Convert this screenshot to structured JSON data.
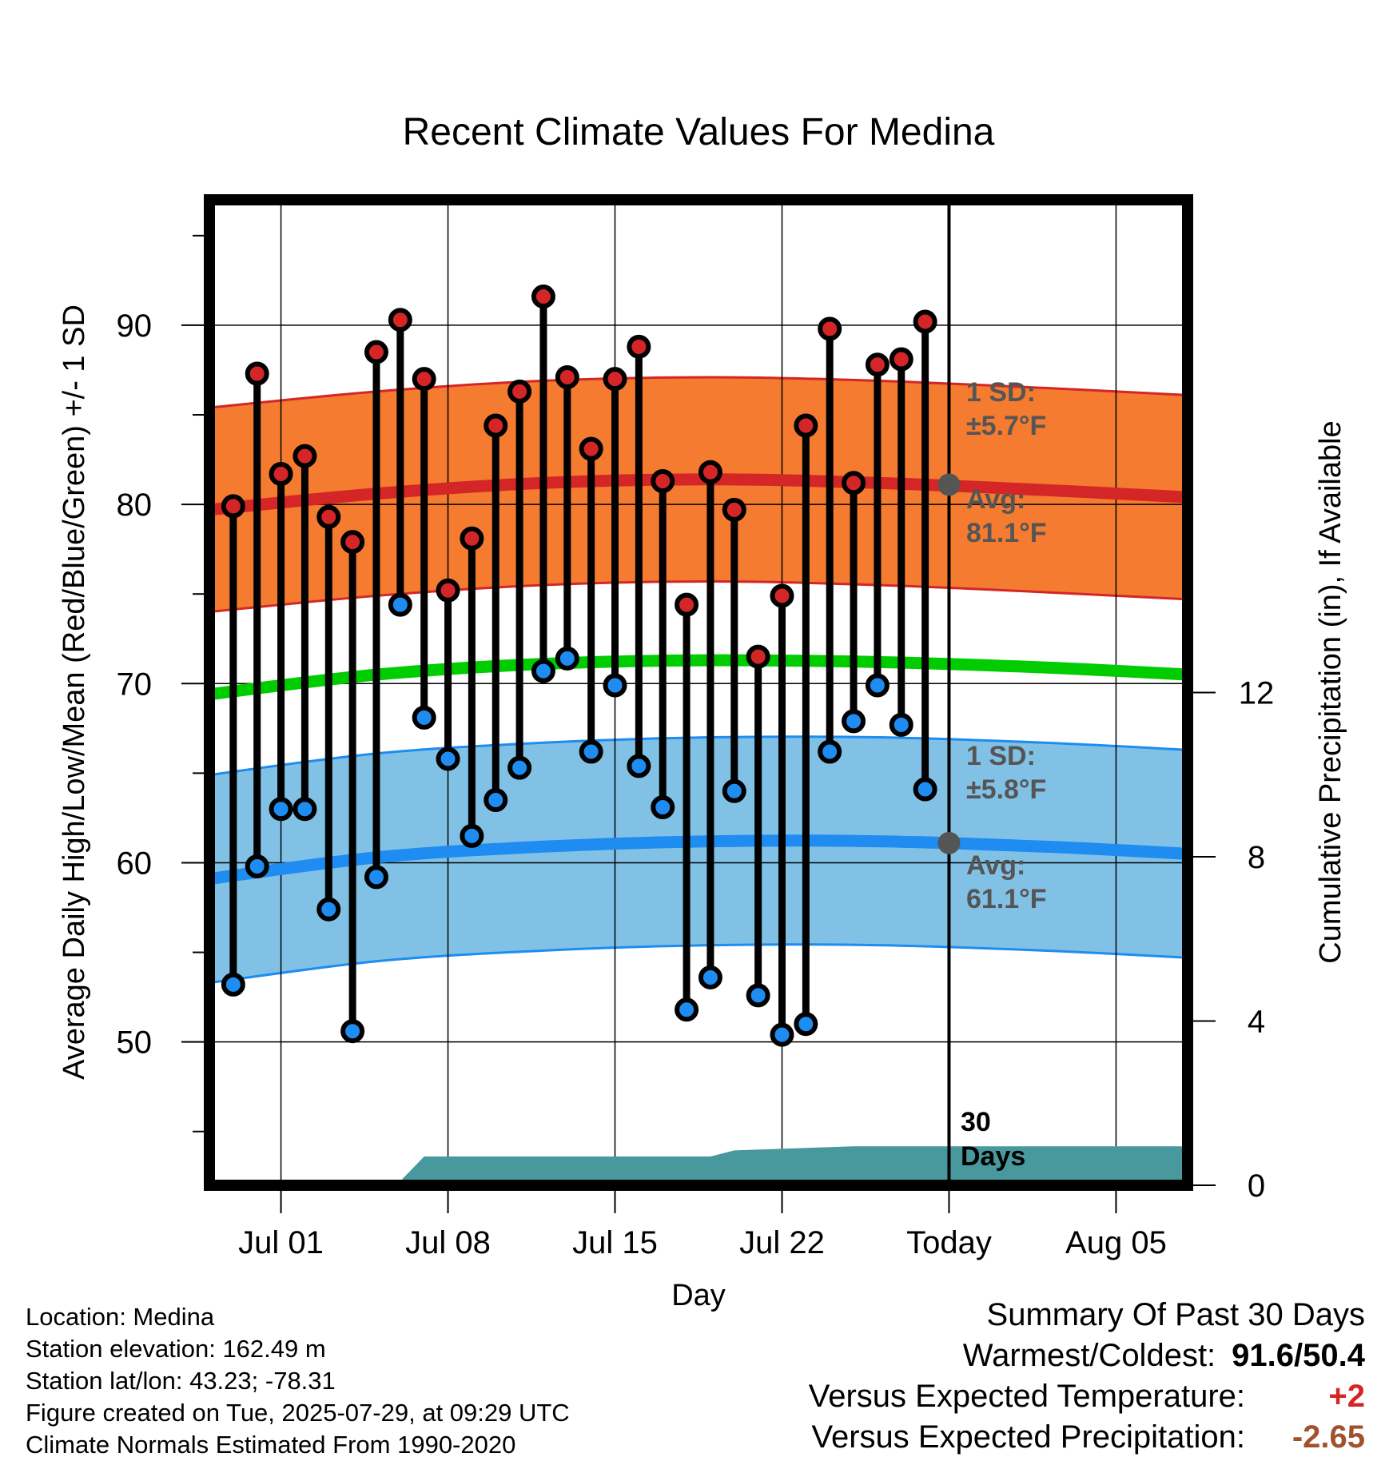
{
  "chart_data": {
    "type": "line",
    "title": "Recent Climate Values For Medina",
    "xlabel": "Day",
    "ylabel": "Average Daily High/Low/Mean (Red/Blue/Green) +/- 1 SD",
    "y2label": "Cumulative Precipitation (in), If Available",
    "ylim": [
      42,
      97
    ],
    "y2lim": [
      0,
      24
    ],
    "xlim": [
      "2025-06-28",
      "2025-08-08"
    ],
    "x_ticks": [
      {
        "date": "2025-07-01",
        "label": "Jul 01"
      },
      {
        "date": "2025-07-08",
        "label": "Jul 08"
      },
      {
        "date": "2025-07-15",
        "label": "Jul 15"
      },
      {
        "date": "2025-07-22",
        "label": "Jul 22"
      },
      {
        "date": "2025-07-29",
        "label": "Today"
      },
      {
        "date": "2025-08-05",
        "label": "Aug 05"
      }
    ],
    "y_ticks": [
      50,
      60,
      70,
      80,
      90
    ],
    "y2_ticks": [
      0,
      4,
      8,
      12
    ],
    "grid": true,
    "today": "2025-07-29",
    "days": [
      "2025-06-29",
      "2025-06-30",
      "2025-07-01",
      "2025-07-02",
      "2025-07-03",
      "2025-07-04",
      "2025-07-05",
      "2025-07-06",
      "2025-07-07",
      "2025-07-08",
      "2025-07-09",
      "2025-07-10",
      "2025-07-11",
      "2025-07-12",
      "2025-07-13",
      "2025-07-14",
      "2025-07-15",
      "2025-07-16",
      "2025-07-17",
      "2025-07-18",
      "2025-07-19",
      "2025-07-20",
      "2025-07-21",
      "2025-07-22",
      "2025-07-23",
      "2025-07-24",
      "2025-07-25",
      "2025-07-26",
      "2025-07-27",
      "2025-07-28"
    ],
    "highs": [
      79.9,
      87.3,
      81.7,
      82.7,
      79.3,
      77.9,
      88.5,
      90.3,
      87.0,
      75.2,
      78.1,
      84.4,
      86.3,
      91.6,
      87.1,
      83.1,
      87.0,
      88.8,
      81.3,
      74.4,
      81.8,
      79.7,
      71.5,
      74.9,
      84.4,
      89.8,
      81.2,
      87.8,
      88.1,
      90.2
    ],
    "lows": [
      53.2,
      59.8,
      63.0,
      63.0,
      57.4,
      50.6,
      59.2,
      74.4,
      68.1,
      65.8,
      61.5,
      63.5,
      65.3,
      70.7,
      71.4,
      66.2,
      69.9,
      65.4,
      63.1,
      51.8,
      53.6,
      64.0,
      52.6,
      50.4,
      51.0,
      66.2,
      67.9,
      69.9,
      67.7,
      64.1
    ],
    "normals": {
      "dates": [
        "2025-06-28",
        "2025-07-05",
        "2025-07-12",
        "2025-07-19",
        "2025-07-26",
        "2025-08-02",
        "2025-08-08"
      ],
      "high_mean": [
        79.7,
        80.6,
        81.2,
        81.4,
        81.2,
        80.8,
        80.4
      ],
      "low_mean": [
        59.1,
        60.3,
        60.9,
        61.2,
        61.2,
        60.9,
        60.5
      ],
      "mean": [
        69.4,
        70.5,
        71.1,
        71.3,
        71.2,
        70.9,
        70.5
      ],
      "high_sd": 5.7,
      "low_sd": 5.8
    },
    "precipitation": {
      "dates": [
        "2025-06-28",
        "2025-07-03",
        "2025-07-06",
        "2025-07-07",
        "2025-07-19",
        "2025-07-20",
        "2025-07-25",
        "2025-08-08"
      ],
      "cumulative": [
        0.0,
        0.05,
        0.1,
        0.7,
        0.7,
        0.85,
        0.95,
        0.95
      ]
    },
    "annotations": {
      "high_sd_label": "1 SD:",
      "high_sd_value": "±5.7°F",
      "high_avg_label": "Avg:",
      "high_avg_value": "81.1°F",
      "low_sd_label": "1 SD:",
      "low_sd_value": "±5.8°F",
      "low_avg_label": "Avg:",
      "low_avg_value": "61.1°F",
      "today_line1": "30",
      "today_line2": "Days"
    },
    "colors": {
      "high_band": "#F47B30",
      "high_line": "#D42626",
      "low_band": "#82C1E6",
      "low_line": "#1E8CF0",
      "mean_line": "#00CC00",
      "precip": "#48999E",
      "high_marker": "#D42626",
      "low_marker": "#1E8CF0",
      "today_marker": "#555555"
    }
  },
  "footer": {
    "location": "Location: Medina",
    "elevation": "Station elevation: 162.49 m",
    "latlon": "Station lat/lon: 43.23; -78.31",
    "created": "Figure created on Tue, 2025-07-29, at 09:29 UTC",
    "normals": "Climate Normals Estimated From 1990-2020"
  },
  "summary": {
    "heading": "Summary Of Past 30 Days",
    "warmest_coldest_label": "Warmest/Coldest:",
    "warmest_coldest_value": "91.6/50.4",
    "temp_label": "Versus Expected Temperature:",
    "temp_value": "+2",
    "temp_color": "#D42626",
    "precip_label": "Versus Expected Precipitation:",
    "precip_value": "-2.65",
    "precip_color": "#A0522D"
  }
}
